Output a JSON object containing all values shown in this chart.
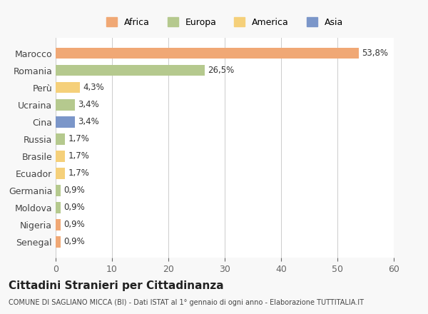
{
  "countries": [
    "Marocco",
    "Romania",
    "Perù",
    "Ucraina",
    "Cina",
    "Russia",
    "Brasile",
    "Ecuador",
    "Germania",
    "Moldova",
    "Nigeria",
    "Senegal"
  ],
  "values": [
    53.8,
    26.5,
    4.3,
    3.4,
    3.4,
    1.7,
    1.7,
    1.7,
    0.9,
    0.9,
    0.9,
    0.9
  ],
  "labels": [
    "53,8%",
    "26,5%",
    "4,3%",
    "3,4%",
    "3,4%",
    "1,7%",
    "1,7%",
    "1,7%",
    "0,9%",
    "0,9%",
    "0,9%",
    "0,9%"
  ],
  "colors": [
    "#f0a875",
    "#b5c98e",
    "#f5d07a",
    "#b5c98e",
    "#7b96c9",
    "#b5c98e",
    "#f5d07a",
    "#f5d07a",
    "#b5c98e",
    "#b5c98e",
    "#f0a875",
    "#f0a875"
  ],
  "legend_labels": [
    "Africa",
    "Europa",
    "America",
    "Asia"
  ],
  "legend_colors": [
    "#f0a875",
    "#b5c98e",
    "#f5d07a",
    "#7b96c9"
  ],
  "title": "Cittadini Stranieri per Cittadinanza",
  "subtitle": "COMUNE DI SAGLIANO MICCA (BI) - Dati ISTAT al 1° gennaio di ogni anno - Elaborazione TUTTITALIA.IT",
  "xlim": [
    0,
    60
  ],
  "xticks": [
    0,
    10,
    20,
    30,
    40,
    50,
    60
  ],
  "background_color": "#f8f8f8",
  "bar_background": "#ffffff"
}
